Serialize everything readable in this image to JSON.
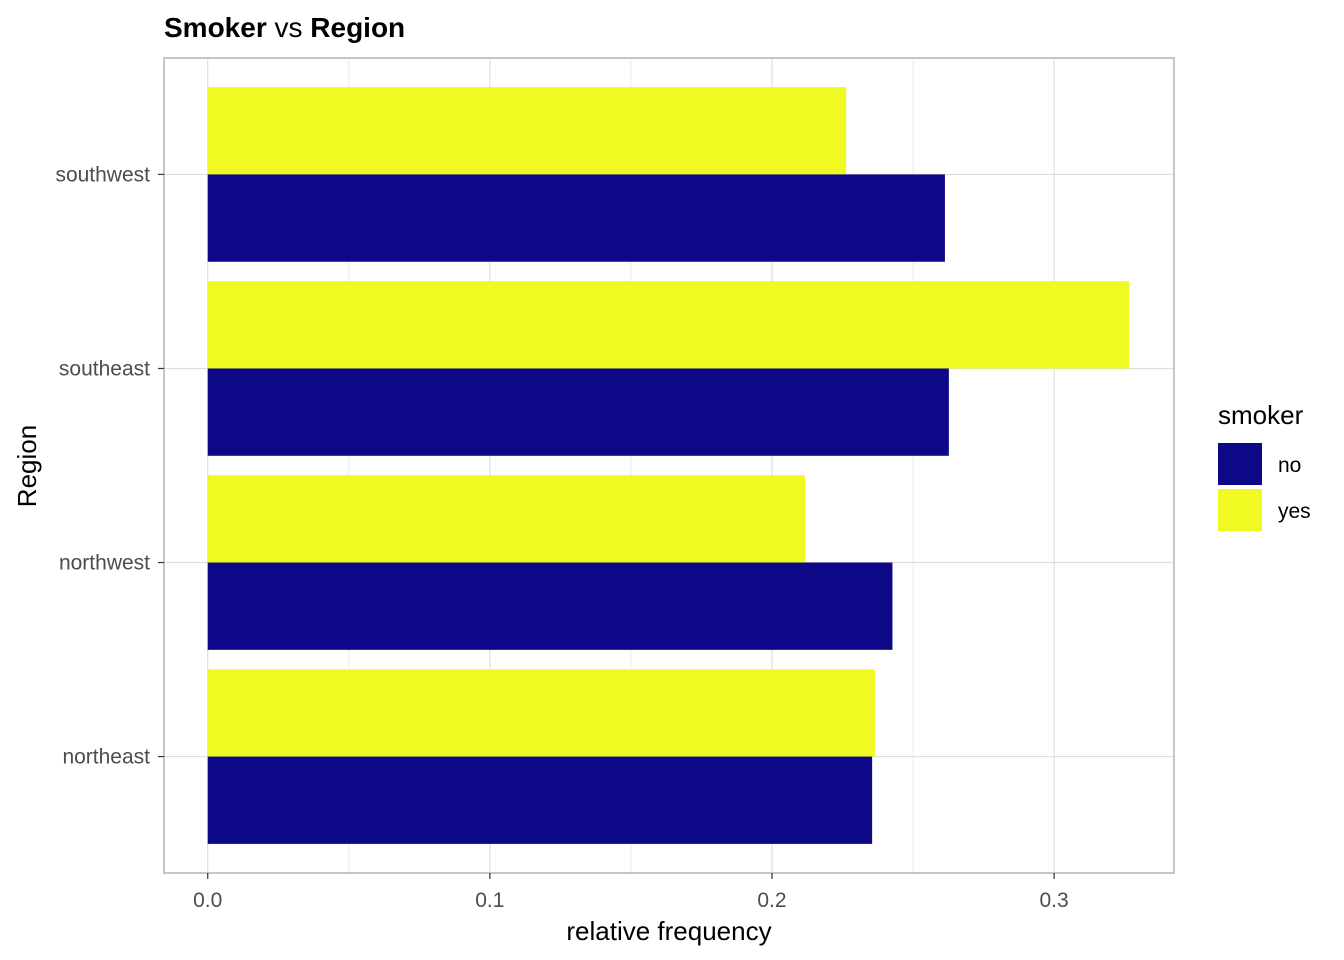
{
  "chart_data": {
    "type": "bar",
    "orientation": "horizontal",
    "title": {
      "part1": "Smoker",
      "part2": " vs ",
      "part3": "Region"
    },
    "xlabel": "relative frequency",
    "ylabel": "Region",
    "categories": [
      "northeast",
      "northwest",
      "southeast",
      "southwest"
    ],
    "xlim": [
      -0.0155,
      0.3425
    ],
    "x_ticks": [
      {
        "value": 0.0,
        "label": "0.0"
      },
      {
        "value": 0.1,
        "label": "0.1"
      },
      {
        "value": 0.2,
        "label": "0.2"
      },
      {
        "value": 0.3,
        "label": "0.3"
      }
    ],
    "x_minor_ticks": [
      0.05,
      0.15,
      0.25
    ],
    "grid": true,
    "legend": {
      "title": "smoker",
      "placement": "right"
    },
    "series": [
      {
        "name": "no",
        "color": "#0D0887",
        "values": [
          0.2355,
          0.2427,
          0.2627,
          0.2613
        ]
      },
      {
        "name": "yes",
        "color": "#F0F921",
        "values": [
          0.2365,
          0.2117,
          0.3266,
          0.2263
        ]
      }
    ]
  }
}
